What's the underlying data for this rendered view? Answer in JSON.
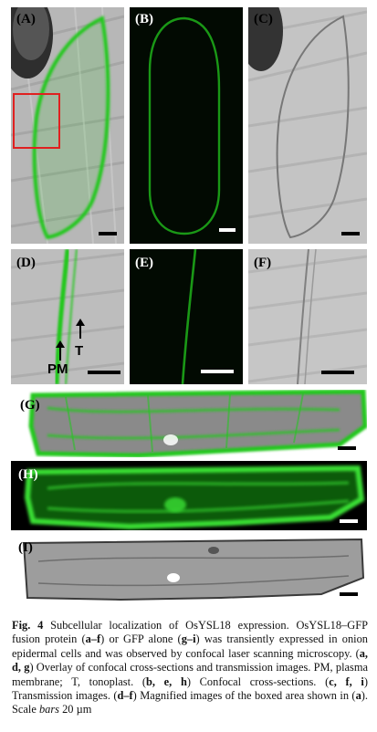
{
  "panels": {
    "A": {
      "label": "(A)"
    },
    "B": {
      "label": "(B)"
    },
    "C": {
      "label": "(C)"
    },
    "D": {
      "label": "(D)"
    },
    "E": {
      "label": "(E)"
    },
    "F": {
      "label": "(F)"
    },
    "G": {
      "label": "(G)"
    },
    "H": {
      "label": "(H)"
    },
    "I": {
      "label": "(I)"
    }
  },
  "annotations": {
    "pm": "PM",
    "t": "T"
  },
  "colors": {
    "gfp_green": "#22c81e",
    "boxed_area": "#e02020"
  },
  "caption": {
    "fig_label": "Fig. 4",
    "text_1": " Subcellular localization of OsYSL18 expression. OsYSL18–GFP fusion protein (",
    "bold_af": "a–f",
    "text_2": ") or GFP alone (",
    "bold_gi": "g–i",
    "text_3": ") was transiently expressed in onion epidermal cells and was observed by confocal laser scanning microscopy. (",
    "bold_adg": "a, d, g",
    "text_4": ") Overlay of confocal cross-sections and transmission images. PM, plasma membrane; T, tonoplast. (",
    "bold_beh": "b, e, h",
    "text_5": ") Confocal cross-sections. (",
    "bold_cfi": "c, f, i",
    "text_6": ") Transmission images. (",
    "bold_df": "d–f",
    "text_7": ") Magnified images of the boxed area shown in (",
    "bold_a": "a",
    "text_8": "). Scale ",
    "italic_bars": "bars",
    "text_9": " 20 µm"
  }
}
